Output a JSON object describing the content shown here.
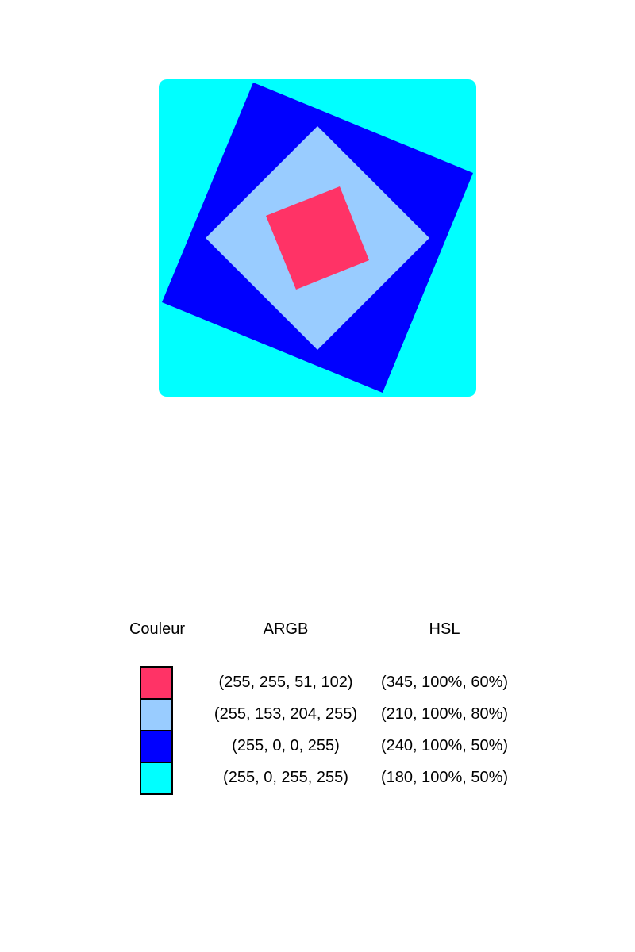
{
  "diagram": {
    "squares": [
      {
        "name": "cyan-background-square",
        "color": "#00ffff"
      },
      {
        "name": "blue-rotated-square",
        "color": "#0000ff"
      },
      {
        "name": "light-blue-diamond",
        "color": "#99ccff"
      },
      {
        "name": "pink-rotated-square",
        "color": "#ff3366"
      }
    ]
  },
  "legend": {
    "headers": {
      "color": "Couleur",
      "argb": "ARGB",
      "hsl": "HSL"
    },
    "rows": [
      {
        "swatch": "#ff3366",
        "argb": "(255, 255, 51, 102)",
        "hsl": "(345, 100%, 60%)"
      },
      {
        "swatch": "#99ccff",
        "argb": "(255, 153, 204, 255)",
        "hsl": "(210, 100%, 80%)"
      },
      {
        "swatch": "#0000ff",
        "argb": "(255, 0, 0, 255)",
        "hsl": "(240, 100%, 50%)"
      },
      {
        "swatch": "#00ffff",
        "argb": "(255, 0, 255, 255)",
        "hsl": "(180, 100%, 50%)"
      }
    ]
  }
}
